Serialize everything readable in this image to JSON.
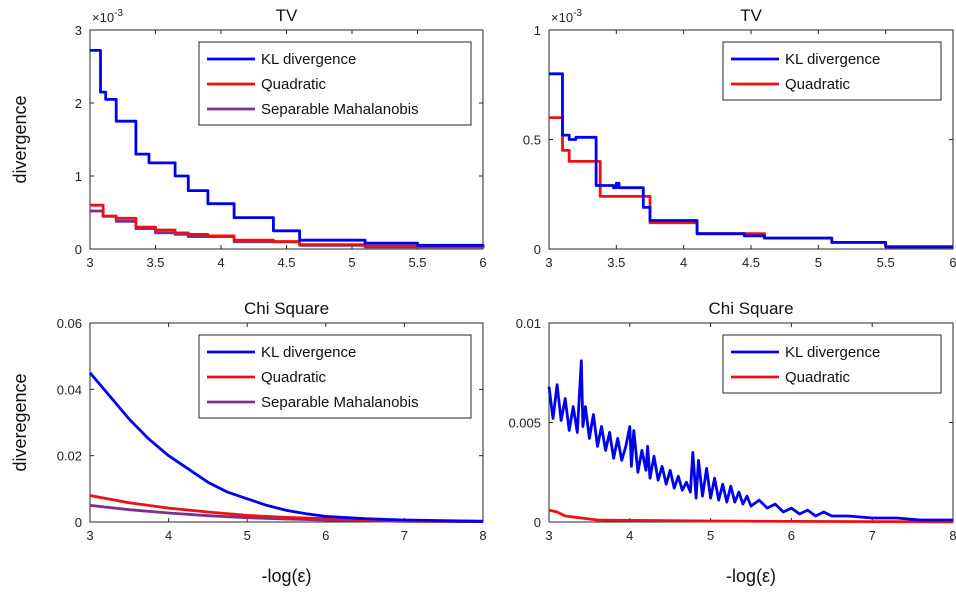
{
  "colors": {
    "KL divergence": "#0000ee",
    "Quadratic": "#ee1111",
    "Separable Mahalanobis": "#7e2f8e"
  },
  "chart_data": [
    {
      "type": "line",
      "title": "TV",
      "xlabel": "",
      "ylabel": "divergence",
      "xlim": [
        3,
        6
      ],
      "ylim": [
        0,
        3
      ],
      "xticks": [
        "3",
        "3.5",
        "4",
        "4.5",
        "5",
        "5.5",
        "6"
      ],
      "yticks": [
        "0",
        "1",
        "2",
        "3"
      ],
      "yexponent": "×10^-3",
      "legend": {
        "position": "top-right"
      },
      "step": true,
      "series": [
        {
          "name": "KL divergence",
          "x": [
            3,
            3.05,
            3.08,
            3.12,
            3.2,
            3.3,
            3.35,
            3.45,
            3.6,
            3.65,
            3.75,
            3.9,
            4.1,
            4.4,
            4.6,
            5.1,
            5.5,
            6
          ],
          "y": [
            2.72,
            2.72,
            2.15,
            2.05,
            1.75,
            1.75,
            1.3,
            1.18,
            1.18,
            1.0,
            0.8,
            0.62,
            0.43,
            0.25,
            0.12,
            0.08,
            0.05,
            0.03
          ]
        },
        {
          "name": "Quadratic",
          "x": [
            3,
            3.08,
            3.1,
            3.2,
            3.35,
            3.5,
            3.65,
            3.75,
            3.9,
            4.1,
            4.4,
            4.6,
            5.1,
            6
          ],
          "y": [
            0.6,
            0.6,
            0.45,
            0.42,
            0.3,
            0.26,
            0.22,
            0.2,
            0.18,
            0.12,
            0.1,
            0.06,
            0.04,
            0.02
          ]
        },
        {
          "name": "Separable Mahalanobis",
          "x": [
            3,
            3.08,
            3.1,
            3.2,
            3.35,
            3.5,
            3.65,
            3.75,
            4.1,
            4.6,
            5.1,
            6
          ],
          "y": [
            0.52,
            0.52,
            0.45,
            0.38,
            0.28,
            0.22,
            0.2,
            0.17,
            0.1,
            0.05,
            0.03,
            0.01
          ]
        }
      ]
    },
    {
      "type": "line",
      "title": "TV",
      "xlabel": "",
      "ylabel": "",
      "xlim": [
        3,
        6
      ],
      "ylim": [
        0,
        1
      ],
      "xticks": [
        "3",
        "3.5",
        "4",
        "4.5",
        "5",
        "5.5",
        "6"
      ],
      "yticks": [
        "0",
        "0.5",
        "1"
      ],
      "yexponent": "×10^-3",
      "legend": {
        "position": "top-right"
      },
      "step": true,
      "series": [
        {
          "name": "KL divergence",
          "x": [
            3,
            3.08,
            3.1,
            3.15,
            3.2,
            3.33,
            3.35,
            3.48,
            3.5,
            3.52,
            3.65,
            3.7,
            3.75,
            3.9,
            4.1,
            4.45,
            4.6,
            5.1,
            5.5,
            6
          ],
          "y": [
            0.8,
            0.8,
            0.52,
            0.5,
            0.51,
            0.51,
            0.29,
            0.28,
            0.3,
            0.28,
            0.28,
            0.19,
            0.13,
            0.13,
            0.07,
            0.06,
            0.05,
            0.03,
            0.01,
            0.01
          ]
        },
        {
          "name": "Quadratic",
          "x": [
            3,
            3.07,
            3.1,
            3.15,
            3.33,
            3.38,
            3.65,
            3.75,
            4.1,
            4.6,
            5.1,
            5.5,
            6
          ],
          "y": [
            0.6,
            0.6,
            0.45,
            0.4,
            0.4,
            0.24,
            0.24,
            0.12,
            0.07,
            0.05,
            0.03,
            0.01,
            0.01
          ]
        }
      ]
    },
    {
      "type": "line",
      "title": "Chi Square",
      "xlabel": "-log(ε)",
      "ylabel": "diveregence",
      "xlim": [
        3,
        8
      ],
      "ylim": [
        0,
        0.06
      ],
      "xticks": [
        "3",
        "4",
        "5",
        "6",
        "7",
        "8"
      ],
      "yticks": [
        "0",
        "0.02",
        "0.04",
        "0.06"
      ],
      "legend": {
        "position": "top-right"
      },
      "step": false,
      "series": [
        {
          "name": "KL divergence",
          "x": [
            3,
            3.25,
            3.5,
            3.75,
            4,
            4.25,
            4.5,
            4.75,
            5,
            5.25,
            5.5,
            5.75,
            6,
            6.5,
            7,
            7.5,
            8
          ],
          "y": [
            0.045,
            0.038,
            0.031,
            0.025,
            0.02,
            0.016,
            0.012,
            0.009,
            0.007,
            0.005,
            0.0035,
            0.0025,
            0.0017,
            0.001,
            0.0006,
            0.0004,
            0.0002
          ]
        },
        {
          "name": "Quadratic",
          "x": [
            3,
            3.5,
            4,
            4.5,
            5,
            5.5,
            6,
            7,
            8
          ],
          "y": [
            0.008,
            0.0058,
            0.0042,
            0.003,
            0.002,
            0.0014,
            0.001,
            0.0004,
            0.0002
          ]
        },
        {
          "name": "Separable Mahalanobis",
          "x": [
            3,
            3.5,
            4,
            4.5,
            5,
            5.5,
            6,
            7,
            8
          ],
          "y": [
            0.005,
            0.0037,
            0.0027,
            0.0019,
            0.0013,
            0.0009,
            0.0006,
            0.0002,
            0.0001
          ]
        }
      ]
    },
    {
      "type": "line",
      "title": "Chi Square",
      "xlabel": "-log(ε)",
      "ylabel": "",
      "xlim": [
        3,
        8
      ],
      "ylim": [
        0,
        0.01
      ],
      "xticks": [
        "3",
        "4",
        "5",
        "6",
        "7",
        "8"
      ],
      "yticks": [
        "0",
        "0.005",
        "0.01"
      ],
      "legend": {
        "position": "top-right"
      },
      "step": false,
      "series": [
        {
          "name": "KL divergence",
          "x": [
            3,
            3.05,
            3.1,
            3.15,
            3.2,
            3.25,
            3.3,
            3.35,
            3.4,
            3.42,
            3.45,
            3.5,
            3.55,
            3.6,
            3.65,
            3.7,
            3.75,
            3.8,
            3.85,
            3.9,
            3.95,
            4,
            4.02,
            4.05,
            4.1,
            4.15,
            4.2,
            4.22,
            4.25,
            4.3,
            4.35,
            4.4,
            4.45,
            4.5,
            4.55,
            4.6,
            4.65,
            4.7,
            4.75,
            4.78,
            4.82,
            4.85,
            4.9,
            4.95,
            5,
            5.05,
            5.1,
            5.15,
            5.2,
            5.25,
            5.3,
            5.35,
            5.4,
            5.45,
            5.5,
            5.6,
            5.7,
            5.8,
            5.9,
            6,
            6.1,
            6.2,
            6.3,
            6.4,
            6.5,
            6.7,
            7,
            7.3,
            7.6,
            8
          ],
          "y": [
            0.0068,
            0.0052,
            0.0069,
            0.0051,
            0.0062,
            0.0046,
            0.0058,
            0.0045,
            0.0081,
            0.0048,
            0.0058,
            0.0042,
            0.0054,
            0.0038,
            0.0048,
            0.0036,
            0.0045,
            0.0032,
            0.0042,
            0.0031,
            0.0038,
            0.0048,
            0.0028,
            0.0046,
            0.0025,
            0.0036,
            0.0026,
            0.0038,
            0.0022,
            0.0033,
            0.0021,
            0.0028,
            0.0019,
            0.0026,
            0.0017,
            0.0023,
            0.0016,
            0.002,
            0.0015,
            0.0035,
            0.0012,
            0.0031,
            0.0013,
            0.0027,
            0.0012,
            0.0022,
            0.0011,
            0.0019,
            0.001,
            0.0018,
            0.001,
            0.0015,
            0.0009,
            0.0013,
            0.0008,
            0.0011,
            0.0007,
            0.0009,
            0.0005,
            0.0007,
            0.0004,
            0.0006,
            0.0003,
            0.0005,
            0.0003,
            0.0003,
            0.0002,
            0.0002,
            0.0001,
            0.0001
          ]
        },
        {
          "name": "Quadratic",
          "x": [
            3,
            3.1,
            3.2,
            3.4,
            3.6,
            4,
            5,
            6,
            7,
            8
          ],
          "y": [
            0.0006,
            0.0005,
            0.0003,
            0.0002,
            0.0001,
            8e-05,
            5e-05,
            3e-05,
            2e-05,
            1e-05
          ]
        }
      ]
    }
  ]
}
